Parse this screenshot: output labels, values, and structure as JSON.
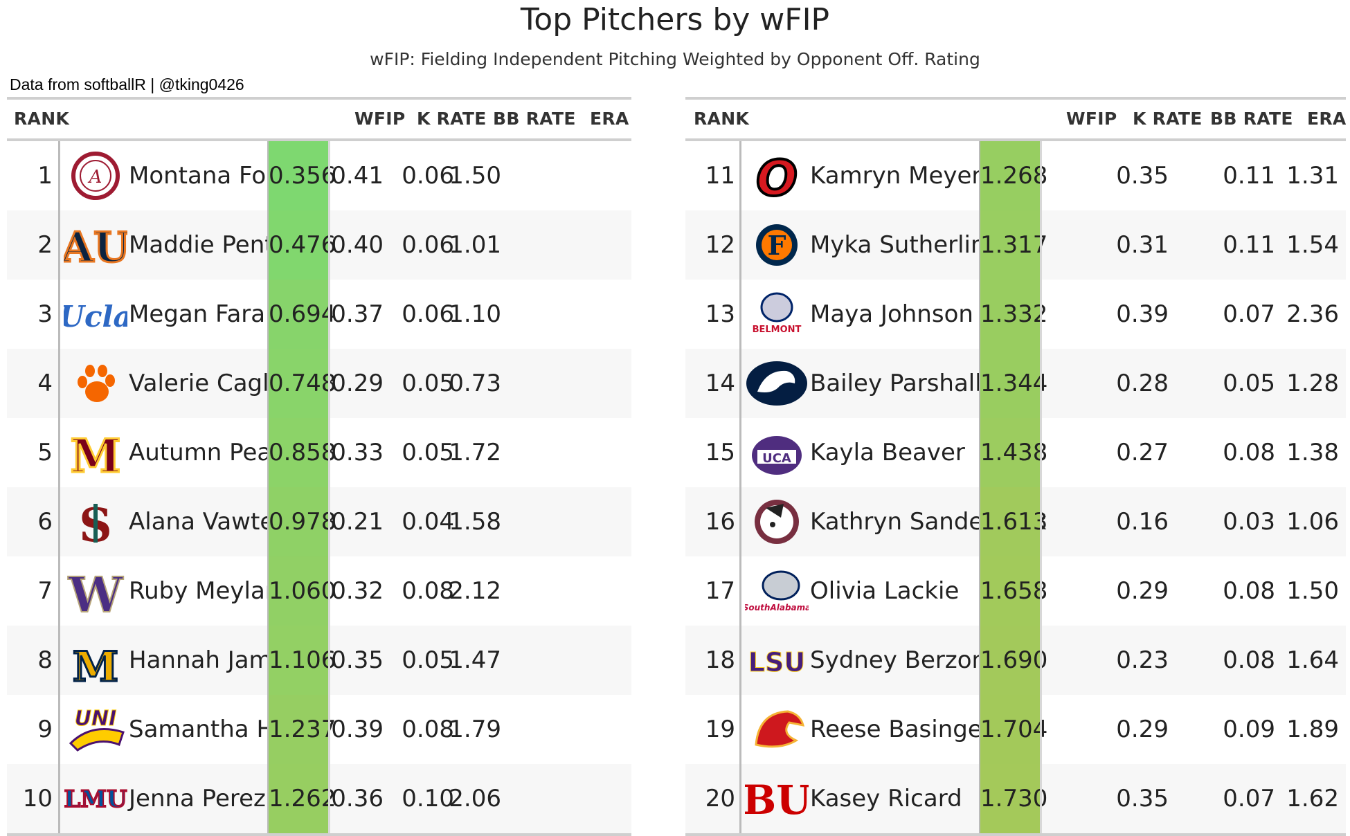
{
  "title": "Top Pitchers by wFIP",
  "subtitle": "wFIP: Fielding Independent Pitching Weighted by Opponent Off. Rating",
  "credit": "Data from softballR | @tking0426",
  "columns": {
    "rank": "RANK",
    "wfip": "WFIP",
    "k_rate": "K RATE",
    "bb_rate": "BB RATE",
    "era": "ERA"
  },
  "colors": {
    "wfip_best": "#7ed870",
    "wfip_worst": "#a4c95a",
    "header_rule": "#cfcfcf",
    "row_alt": "#f7f7f7"
  },
  "chart_data": {
    "type": "table",
    "columns": [
      "RANK",
      "",
      "",
      "WFIP",
      "K RATE",
      "BB RATE",
      "ERA"
    ],
    "rows": [
      {
        "rank": "1",
        "logo": "alabama-logo-icon",
        "name": "Montana Fouts",
        "wfip": "0.356",
        "k_rate": "0.41",
        "bb_rate": "0.06",
        "era": "1.50",
        "wfip_value": 0.356
      },
      {
        "rank": "2",
        "logo": "auburn-logo-icon",
        "name": "Maddie Penta",
        "wfip": "0.476",
        "k_rate": "0.40",
        "bb_rate": "0.06",
        "era": "1.01",
        "wfip_value": 0.476
      },
      {
        "rank": "3",
        "logo": "ucla-logo-icon",
        "name": "Megan Faraimo",
        "wfip": "0.694",
        "k_rate": "0.37",
        "bb_rate": "0.06",
        "era": "1.10",
        "wfip_value": 0.694
      },
      {
        "rank": "4",
        "logo": "clemson-paw-icon",
        "name": "Valerie Cagle",
        "wfip": "0.748",
        "k_rate": "0.29",
        "bb_rate": "0.05",
        "era": "0.73",
        "wfip_value": 0.748
      },
      {
        "rank": "5",
        "logo": "minnesota-logo-icon",
        "name": "Autumn Pease",
        "wfip": "0.858",
        "k_rate": "0.33",
        "bb_rate": "0.05",
        "era": "1.72",
        "wfip_value": 0.858
      },
      {
        "rank": "6",
        "logo": "stanford-logo-icon",
        "name": "Alana Vawter",
        "wfip": "0.978",
        "k_rate": "0.21",
        "bb_rate": "0.04",
        "era": "1.58",
        "wfip_value": 0.978
      },
      {
        "rank": "7",
        "logo": "washington-logo-icon",
        "name": "Ruby Meylan",
        "wfip": "1.060",
        "k_rate": "0.32",
        "bb_rate": "0.08",
        "era": "2.12",
        "wfip_value": 1.06
      },
      {
        "rank": "8",
        "logo": "murray-state-logo-icon",
        "name": "Hannah James",
        "wfip": "1.106",
        "k_rate": "0.35",
        "bb_rate": "0.05",
        "era": "1.47",
        "wfip_value": 1.106
      },
      {
        "rank": "9",
        "logo": "northern-iowa-logo-icon",
        "name": "Samantha Heyer",
        "wfip": "1.237",
        "k_rate": "0.39",
        "bb_rate": "0.08",
        "era": "1.79",
        "wfip_value": 1.237
      },
      {
        "rank": "10",
        "logo": "lmu-logo-icon",
        "name": "Jenna Perez",
        "wfip": "1.262",
        "k_rate": "0.36",
        "bb_rate": "0.10",
        "era": "2.06",
        "wfip_value": 1.262
      },
      {
        "rank": "11",
        "logo": "omaha-logo-icon",
        "name": "Kamryn Meyer",
        "wfip": "1.268",
        "k_rate": "0.35",
        "bb_rate": "0.11",
        "era": "1.31",
        "wfip_value": 1.268
      },
      {
        "rank": "12",
        "logo": "cal-state-fullerton-logo-icon",
        "name": "Myka Sutherlin",
        "wfip": "1.317",
        "k_rate": "0.31",
        "bb_rate": "0.11",
        "era": "1.54",
        "wfip_value": 1.317
      },
      {
        "rank": "13",
        "logo": "belmont-logo-icon",
        "name": "Maya Johnson",
        "wfip": "1.332",
        "k_rate": "0.39",
        "bb_rate": "0.07",
        "era": "2.36",
        "wfip_value": 1.332
      },
      {
        "rank": "14",
        "logo": "penn-state-logo-icon",
        "name": "Bailey Parshall",
        "wfip": "1.344",
        "k_rate": "0.28",
        "bb_rate": "0.05",
        "era": "1.28",
        "wfip_value": 1.344
      },
      {
        "rank": "15",
        "logo": "central-arkansas-logo-icon",
        "name": "Kayla Beaver",
        "wfip": "1.438",
        "k_rate": "0.27",
        "bb_rate": "0.08",
        "era": "1.38",
        "wfip_value": 1.438
      },
      {
        "rank": "16",
        "logo": "florida-state-logo-icon",
        "name": "Kathryn Sandercock",
        "wfip": "1.613",
        "k_rate": "0.16",
        "bb_rate": "0.03",
        "era": "1.06",
        "wfip_value": 1.613
      },
      {
        "rank": "17",
        "logo": "south-alabama-logo-icon",
        "name": "Olivia Lackie",
        "wfip": "1.658",
        "k_rate": "0.29",
        "bb_rate": "0.08",
        "era": "1.50",
        "wfip_value": 1.658
      },
      {
        "rank": "18",
        "logo": "lsu-logo-icon",
        "name": "Sydney Berzon",
        "wfip": "1.690",
        "k_rate": "0.23",
        "bb_rate": "0.08",
        "era": "1.64",
        "wfip_value": 1.69
      },
      {
        "rank": "19",
        "logo": "louisiana-logo-icon",
        "name": "Reese Basinger",
        "wfip": "1.704",
        "k_rate": "0.29",
        "bb_rate": "0.09",
        "era": "1.89",
        "wfip_value": 1.704
      },
      {
        "rank": "20",
        "logo": "boston-university-logo-icon",
        "name": "Kasey Ricard",
        "wfip": "1.730",
        "k_rate": "0.35",
        "bb_rate": "0.07",
        "era": "1.62",
        "wfip_value": 1.73
      }
    ],
    "logo_texts": {
      "ucla": "Ucla",
      "uni": "UNI",
      "lmu": "LMU",
      "ucm": "UCA",
      "lsu": "LSU",
      "bu": "BU",
      "belmont": "BELMONT",
      "south_alabama": "SouthAlabama",
      "f": "F",
      "m": "M",
      "w": "W",
      "s": "S",
      "o": "O",
      "au": "AU",
      "a": "A"
    }
  }
}
